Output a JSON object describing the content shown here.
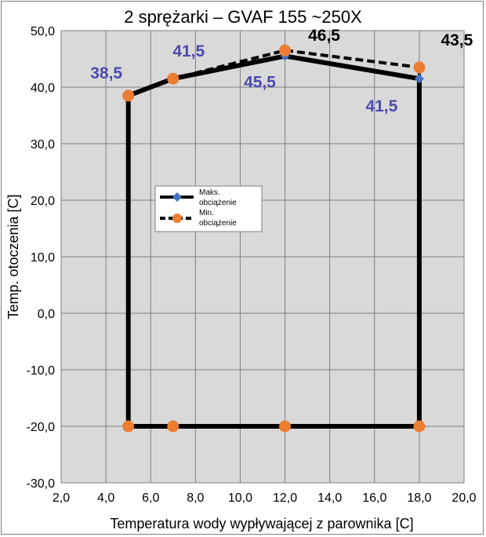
{
  "chart_data": {
    "type": "line",
    "title": "2 sprężarki – GVAF 155 ~250X",
    "xlabel": "Temperatura wody wypływającej z parownika [C]",
    "ylabel": "Temp. otoczenia [C]",
    "xlim": [
      2,
      20
    ],
    "ylim": [
      -30,
      50
    ],
    "x_ticks": [
      "2,0",
      "4,0",
      "6,0",
      "8,0",
      "10,0",
      "12,0",
      "14,0",
      "16,0",
      "18,0",
      "20,0"
    ],
    "y_ticks": [
      "50,0",
      "40,0",
      "30,0",
      "20,0",
      "10,0",
      "0,0",
      "-10,0",
      "-20,0",
      "-30,0"
    ],
    "grid": true,
    "legend_position": "center-left",
    "series": [
      {
        "name": "Maks. obciążenie",
        "color": "#000000",
        "marker_color": "#4472c4",
        "marker": "diamond",
        "line_style": "solid",
        "points": [
          [
            5,
            -20
          ],
          [
            5,
            38.5
          ],
          [
            7,
            41.5
          ],
          [
            12,
            45.5
          ],
          [
            18,
            41.5
          ],
          [
            18,
            -20
          ],
          [
            12,
            -20
          ],
          [
            7,
            -20
          ],
          [
            5,
            -20
          ]
        ]
      },
      {
        "name": "Min. obciążenie",
        "color": "#000000",
        "marker_color": "#ed7d31",
        "marker": "circle",
        "line_style": "dashed",
        "points": [
          [
            5,
            -20
          ],
          [
            5,
            38.5
          ],
          [
            7,
            41.5
          ],
          [
            12,
            46.5
          ],
          [
            18,
            43.5
          ],
          [
            18,
            -20
          ],
          [
            12,
            -20
          ],
          [
            7,
            -20
          ],
          [
            5,
            -20
          ]
        ]
      }
    ],
    "annotations": [
      {
        "text": "38,5",
        "x": 5,
        "y": 38.5,
        "color": "#4b4baf"
      },
      {
        "text": "41,5",
        "x": 7,
        "y": 41.5,
        "color": "#4b4baf"
      },
      {
        "text": "45,5",
        "x": 12,
        "y": 45.5,
        "color": "#4b4baf"
      },
      {
        "text": "46,5",
        "x": 12,
        "y": 46.5,
        "color": "#000000"
      },
      {
        "text": "41,5",
        "x": 18,
        "y": 41.5,
        "color": "#4b4baf"
      },
      {
        "text": "43,5",
        "x": 18,
        "y": 43.5,
        "color": "#000000"
      }
    ]
  }
}
